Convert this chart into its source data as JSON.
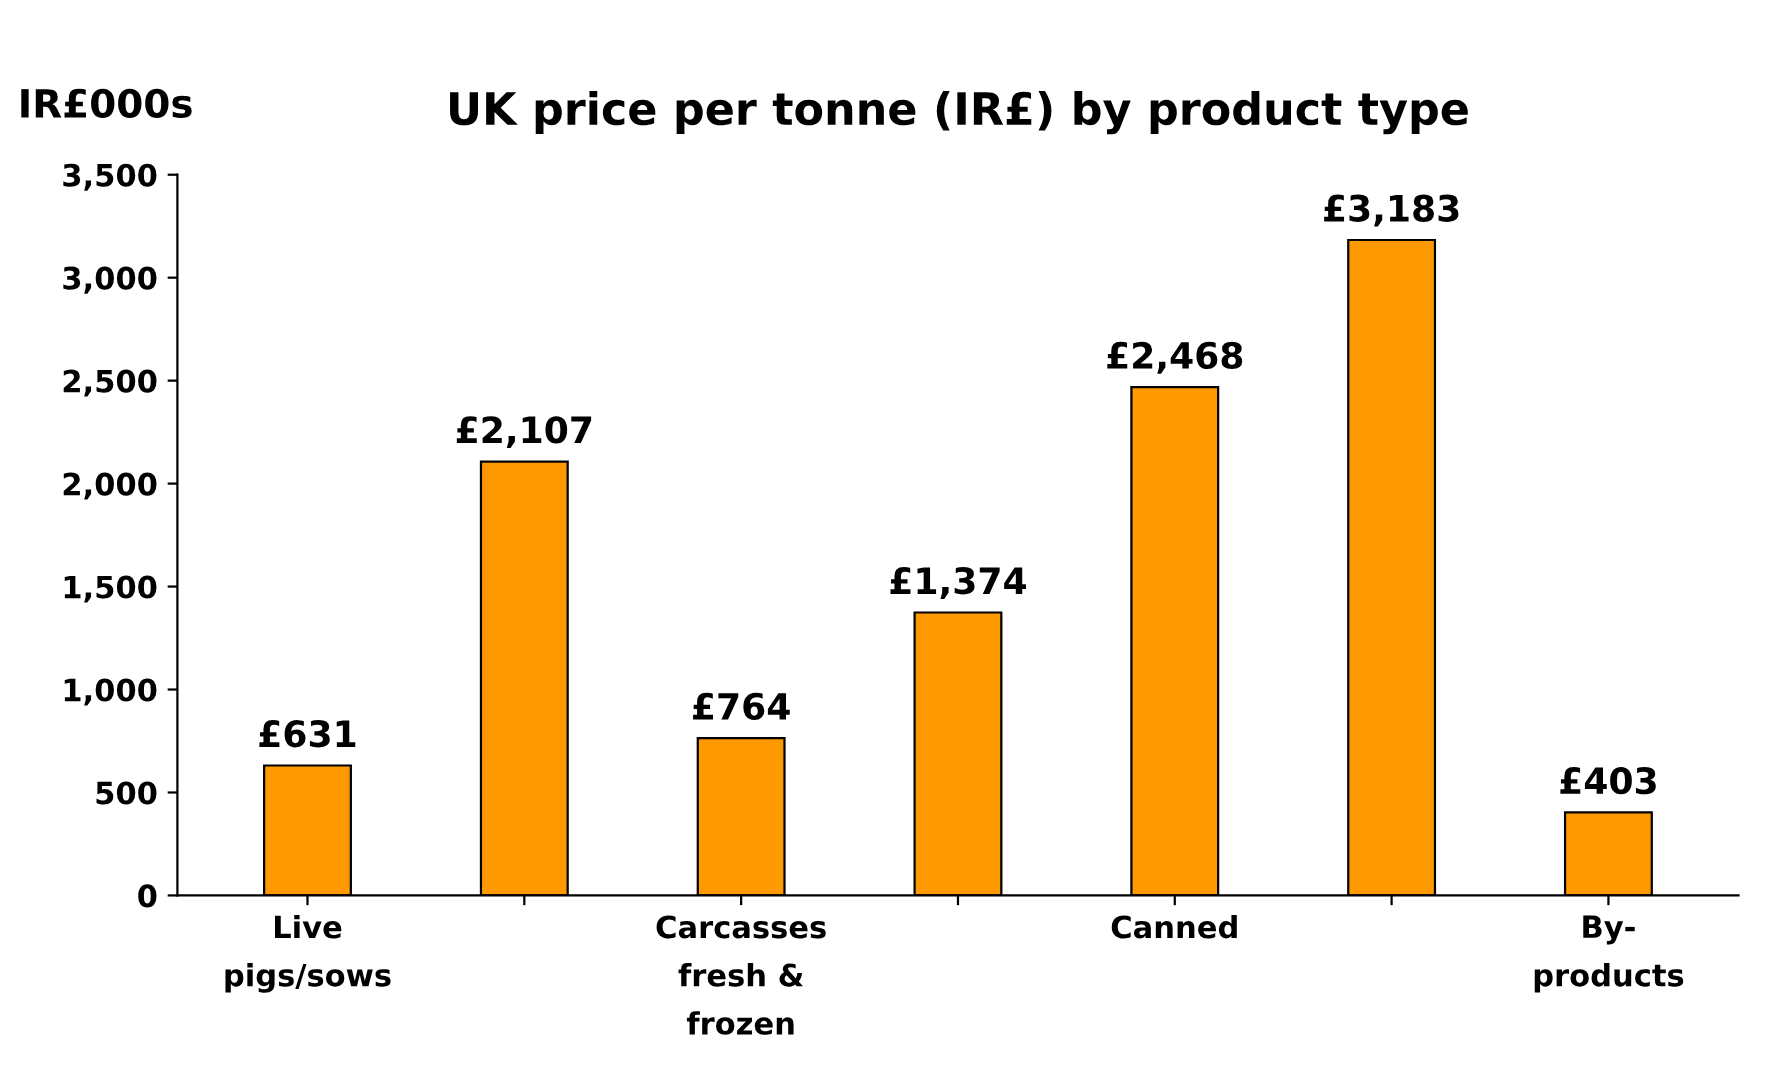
{
  "chart_data": {
    "type": "bar",
    "title": "UK price per tonne (IR£) by product type",
    "ylabel": "IR£000s",
    "categories": [
      "Live\npigs/sows",
      null,
      "Carcasses\nfresh &\nfrozen",
      null,
      "Canned",
      null,
      "By-\nproducts"
    ],
    "values": [
      631,
      2107,
      764,
      1374,
      2468,
      3183,
      403
    ],
    "value_labels": [
      "£631",
      "£2,107",
      "£764",
      "£1,374",
      "£2,468",
      "£3,183",
      "£403"
    ],
    "color": "#ff9900",
    "ylim": [
      0,
      3500
    ],
    "yticks": [
      0,
      {
        "value": 500,
        "label": "500"
      },
      {
        "value": 1000,
        "label": "1,000"
      },
      {
        "value": 1500,
        "label": "1,500"
      },
      {
        "value": 2000,
        "label": "2,000"
      },
      {
        "value": 2500,
        "label": "2,500"
      },
      {
        "value": 3000,
        "label": "3,000"
      },
      {
        "value": 3500,
        "label": "3,500"
      }
    ],
    "grid": false,
    "legend": false
  }
}
